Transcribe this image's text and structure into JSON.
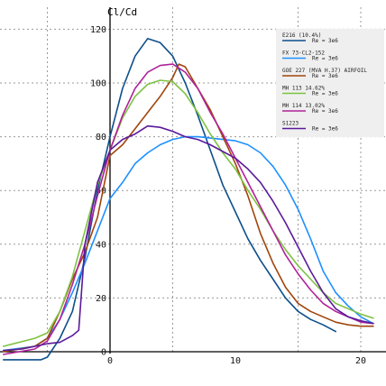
{
  "chart_data": {
    "type": "line",
    "title": "",
    "ylabel": "Cl/Cd",
    "xlabel": "",
    "xlim": [
      -8.5,
      22.5
    ],
    "ylim": [
      -3,
      124
    ],
    "x_ticks": [
      0,
      10,
      20
    ],
    "y_ticks": [
      0,
      20,
      40,
      60,
      80,
      100,
      120
    ],
    "grid": true,
    "legend_position": "top-right",
    "series": [
      {
        "name": "E216  (10.4%)",
        "re_label": "Re = 3e6",
        "color": "#0d4f8b",
        "points": [
          [
            -8.5,
            -3
          ],
          [
            -5.5,
            -3
          ],
          [
            -5,
            -2
          ],
          [
            -4,
            5
          ],
          [
            -3,
            15
          ],
          [
            -2,
            35
          ],
          [
            -1,
            60
          ],
          [
            0,
            80
          ],
          [
            1,
            98
          ],
          [
            2,
            110
          ],
          [
            3,
            116.5
          ],
          [
            4,
            115
          ],
          [
            5,
            110
          ],
          [
            6,
            100
          ],
          [
            7,
            88
          ],
          [
            8,
            75
          ],
          [
            9,
            62
          ],
          [
            10,
            52
          ],
          [
            11,
            42
          ],
          [
            12,
            34
          ],
          [
            13,
            27
          ],
          [
            14,
            20
          ],
          [
            15,
            15
          ],
          [
            16,
            12
          ],
          [
            17,
            10
          ],
          [
            18,
            7.5
          ]
        ]
      },
      {
        "name": "FX 73-CL2-152",
        "re_label": "Re = 3e6",
        "color": "#1e90ff",
        "points": [
          [
            -8.5,
            0.5
          ],
          [
            -6,
            2
          ],
          [
            -5,
            5
          ],
          [
            -4,
            12
          ],
          [
            -3,
            22
          ],
          [
            -2,
            33
          ],
          [
            -1,
            45
          ],
          [
            0,
            57
          ],
          [
            1,
            63
          ],
          [
            2,
            70
          ],
          [
            3,
            74
          ],
          [
            4,
            77
          ],
          [
            5,
            79
          ],
          [
            6,
            80
          ],
          [
            7,
            80
          ],
          [
            8,
            79.5
          ],
          [
            9,
            79
          ],
          [
            10,
            78.5
          ],
          [
            11,
            77
          ],
          [
            12,
            74
          ],
          [
            13,
            69
          ],
          [
            14,
            62
          ],
          [
            15,
            53
          ],
          [
            16,
            42
          ],
          [
            17,
            30
          ],
          [
            18,
            22
          ],
          [
            19,
            17
          ],
          [
            20,
            13
          ],
          [
            21,
            10.5
          ]
        ]
      },
      {
        "name": "GOE 227 (MVA H.37) AIRFOIL",
        "re_label": "Re = 3e6",
        "color": "#a0450c",
        "points": [
          [
            -8.5,
            0
          ],
          [
            -6,
            2
          ],
          [
            -5,
            5
          ],
          [
            -4,
            15
          ],
          [
            -3,
            27
          ],
          [
            -2,
            37
          ],
          [
            -1,
            50
          ],
          [
            0,
            73
          ],
          [
            1,
            77
          ],
          [
            2,
            83
          ],
          [
            3,
            89
          ],
          [
            4,
            95
          ],
          [
            5,
            102
          ],
          [
            5.5,
            107
          ],
          [
            6,
            106
          ],
          [
            7,
            98
          ],
          [
            8,
            90
          ],
          [
            9,
            80
          ],
          [
            10,
            70
          ],
          [
            11,
            58
          ],
          [
            12,
            44
          ],
          [
            13,
            33
          ],
          [
            14,
            24
          ],
          [
            15,
            18
          ],
          [
            16,
            15
          ],
          [
            17,
            13
          ],
          [
            18,
            11
          ],
          [
            19,
            10
          ],
          [
            20,
            9.5
          ],
          [
            21,
            9.5
          ]
        ]
      },
      {
        "name": "MH 113  14.62%",
        "re_label": "Re = 3e6",
        "color": "#7dc241",
        "points": [
          [
            -8.5,
            2
          ],
          [
            -6,
            5
          ],
          [
            -5,
            7
          ],
          [
            -4,
            15
          ],
          [
            -3,
            28
          ],
          [
            -2,
            45
          ],
          [
            -1,
            62
          ],
          [
            0,
            75
          ],
          [
            1,
            87
          ],
          [
            2,
            95
          ],
          [
            3,
            99.5
          ],
          [
            4,
            101
          ],
          [
            5,
            100.5
          ],
          [
            6,
            96
          ],
          [
            7,
            89
          ],
          [
            8,
            81
          ],
          [
            9,
            74
          ],
          [
            10,
            68
          ],
          [
            11,
            60
          ],
          [
            12,
            53
          ],
          [
            13,
            45
          ],
          [
            14,
            38
          ],
          [
            15,
            32
          ],
          [
            16,
            27
          ],
          [
            17,
            22
          ],
          [
            18,
            18
          ],
          [
            19,
            16
          ],
          [
            20,
            14
          ],
          [
            21,
            12.5
          ]
        ]
      },
      {
        "name": "MH 114  13.02%",
        "re_label": "Re = 3e6",
        "color": "#b0229a",
        "points": [
          [
            -8.5,
            -1
          ],
          [
            -6,
            1
          ],
          [
            -5,
            4
          ],
          [
            -4,
            12
          ],
          [
            -3,
            25
          ],
          [
            -2,
            40
          ],
          [
            -1,
            58
          ],
          [
            0,
            75
          ],
          [
            1,
            88
          ],
          [
            2,
            98
          ],
          [
            3,
            104
          ],
          [
            4,
            106.5
          ],
          [
            5,
            107
          ],
          [
            6,
            104
          ],
          [
            7,
            98
          ],
          [
            8,
            89
          ],
          [
            9,
            81
          ],
          [
            10,
            72
          ],
          [
            11,
            63
          ],
          [
            12,
            54
          ],
          [
            13,
            45
          ],
          [
            14,
            36
          ],
          [
            15,
            29
          ],
          [
            16,
            23
          ],
          [
            17,
            18
          ],
          [
            18,
            15
          ],
          [
            19,
            13
          ],
          [
            20,
            11
          ],
          [
            21,
            10.5
          ]
        ]
      },
      {
        "name": "S1223",
        "re_label": "Re = 3e6",
        "color": "#5a1a9a",
        "points": [
          [
            -8.5,
            0.5
          ],
          [
            -7,
            1
          ],
          [
            -6,
            2
          ],
          [
            -5,
            3
          ],
          [
            -4,
            3.5
          ],
          [
            -3,
            6
          ],
          [
            -2.5,
            8
          ],
          [
            -2,
            40
          ],
          [
            -1,
            63
          ],
          [
            0,
            75
          ],
          [
            1,
            79
          ],
          [
            2,
            81
          ],
          [
            3,
            84
          ],
          [
            4,
            83.5
          ],
          [
            5,
            82
          ],
          [
            6,
            80
          ],
          [
            7,
            79
          ],
          [
            8,
            77
          ],
          [
            9,
            74.5
          ],
          [
            10,
            72
          ],
          [
            11,
            68
          ],
          [
            12,
            63
          ],
          [
            13,
            56
          ],
          [
            14,
            48
          ],
          [
            15,
            39
          ],
          [
            16,
            30
          ],
          [
            17,
            22
          ],
          [
            18,
            16
          ],
          [
            19,
            13
          ],
          [
            20,
            11.5
          ],
          [
            21,
            10.5
          ]
        ]
      }
    ]
  }
}
